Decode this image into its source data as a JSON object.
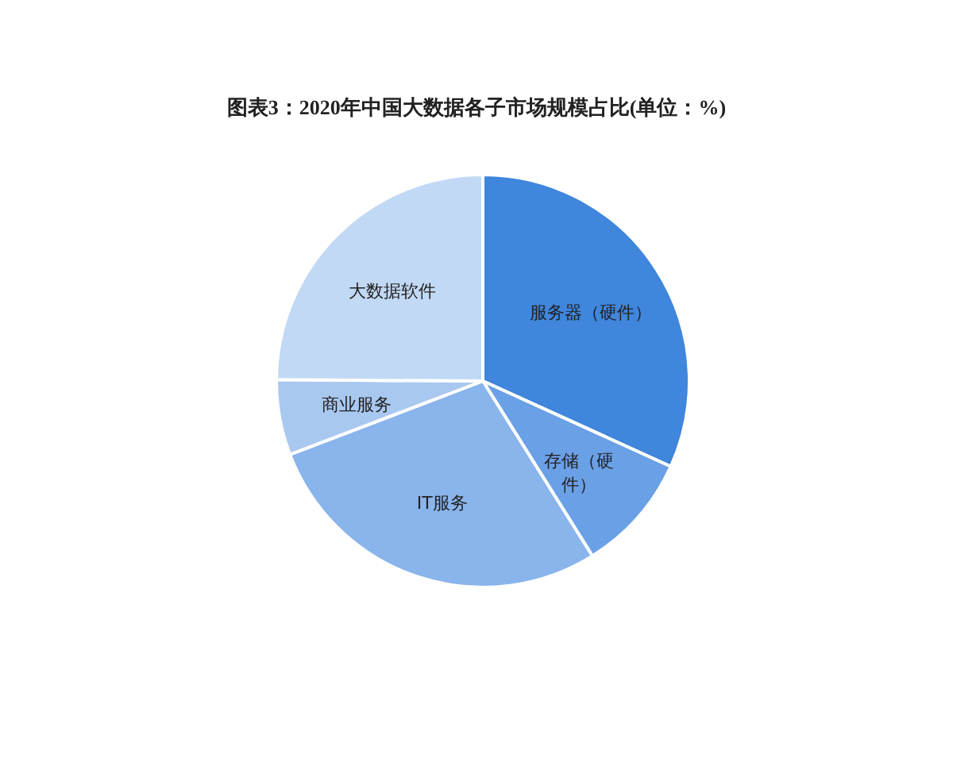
{
  "chart_data": {
    "type": "pie",
    "title": "图表3：2020年中国大数据各子市场规模占比(单位：%)",
    "categories": [
      "服务器（硬件）",
      "存储（硬件）",
      "IT服务",
      "商业服务",
      "大数据软件"
    ],
    "values": [
      31.8,
      9.3,
      28.1,
      5.9,
      24.9
    ],
    "colors": [
      "#3f86dc",
      "#6aa0e6",
      "#89b4ec",
      "#a9c8f0",
      "#c2d9f5"
    ],
    "legend": false
  }
}
